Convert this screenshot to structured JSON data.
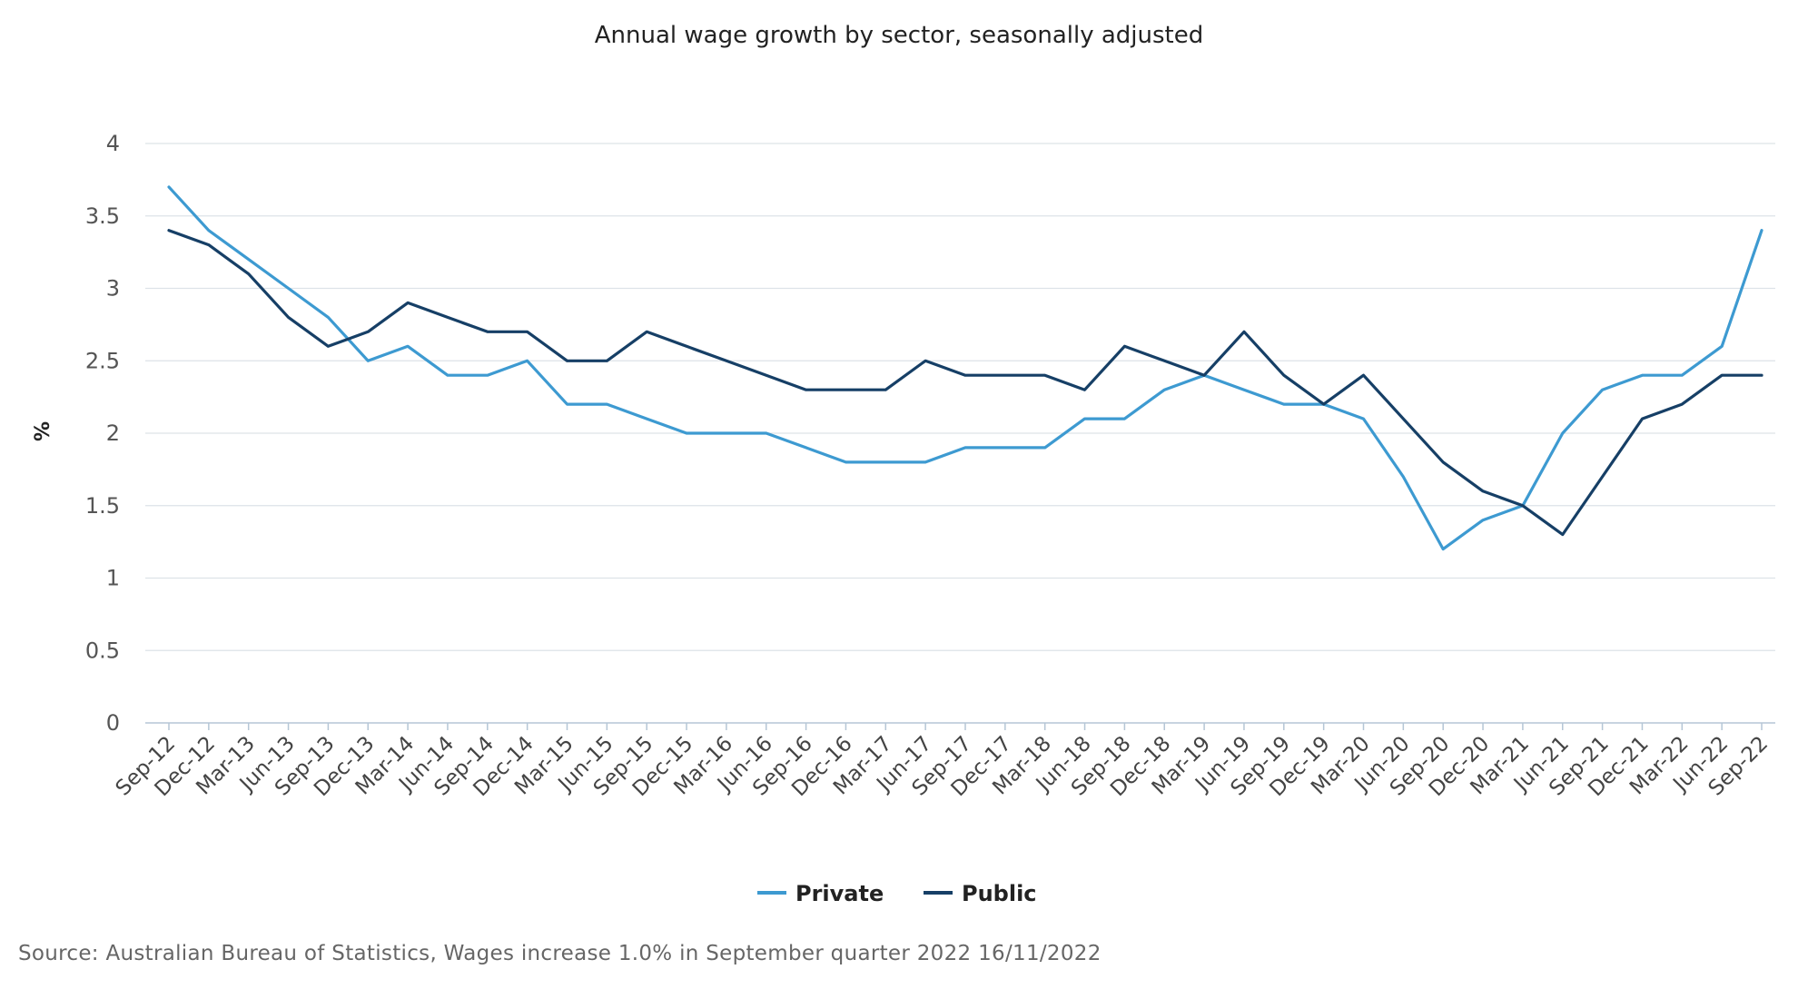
{
  "chart_data": {
    "type": "line",
    "title": "Annual wage growth by sector, seasonally adjusted",
    "xlabel": "",
    "ylabel": "%",
    "ylim": [
      0,
      4
    ],
    "yticks": [
      "0",
      "0.5",
      "1",
      "1.5",
      "2",
      "2.5",
      "3",
      "3.5",
      "4"
    ],
    "grid": true,
    "legend_position": "bottom",
    "categories": [
      "Sep-12",
      "Dec-12",
      "Mar-13",
      "Jun-13",
      "Sep-13",
      "Dec-13",
      "Mar-14",
      "Jun-14",
      "Sep-14",
      "Dec-14",
      "Mar-15",
      "Jun-15",
      "Sep-15",
      "Dec-15",
      "Mar-16",
      "Jun-16",
      "Sep-16",
      "Dec-16",
      "Mar-17",
      "Jun-17",
      "Sep-17",
      "Dec-17",
      "Mar-18",
      "Jun-18",
      "Sep-18",
      "Dec-18",
      "Mar-19",
      "Jun-19",
      "Sep-19",
      "Dec-19",
      "Mar-20",
      "Jun-20",
      "Sep-20",
      "Dec-20",
      "Mar-21",
      "Jun-21",
      "Sep-21",
      "Dec-21",
      "Mar-22",
      "Jun-22",
      "Sep-22"
    ],
    "series": [
      {
        "name": "Private",
        "color": "#3d9ad1",
        "values": [
          3.7,
          3.4,
          3.2,
          3.0,
          2.8,
          2.5,
          2.6,
          2.4,
          2.4,
          2.5,
          2.2,
          2.2,
          2.1,
          2.0,
          2.0,
          2.0,
          1.9,
          1.8,
          1.8,
          1.8,
          1.9,
          1.9,
          1.9,
          2.1,
          2.1,
          2.3,
          2.4,
          2.3,
          2.2,
          2.2,
          2.1,
          1.7,
          1.2,
          1.4,
          1.5,
          2.0,
          2.3,
          2.4,
          2.4,
          2.6,
          3.4
        ]
      },
      {
        "name": "Public",
        "color": "#163f66",
        "values": [
          3.4,
          3.3,
          3.1,
          2.8,
          2.6,
          2.7,
          2.9,
          2.8,
          2.7,
          2.7,
          2.5,
          2.5,
          2.7,
          2.6,
          2.5,
          2.4,
          2.3,
          2.3,
          2.3,
          2.5,
          2.4,
          2.4,
          2.4,
          2.3,
          2.6,
          2.5,
          2.4,
          2.7,
          2.4,
          2.2,
          2.4,
          2.1,
          1.8,
          1.6,
          1.5,
          1.3,
          1.7,
          2.1,
          2.2,
          2.4,
          2.4
        ]
      }
    ]
  },
  "source_note": "Source: Australian Bureau of Statistics, Wages increase 1.0% in September quarter 2022 16/11/2022"
}
